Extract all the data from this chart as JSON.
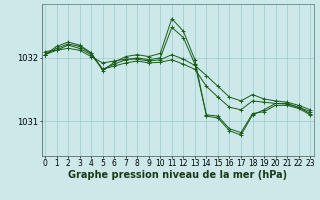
{
  "background_color": "#cce8e8",
  "plot_bg_color": "#cce8e8",
  "grid_color": "#99cccc",
  "line_color": "#1a5c1a",
  "marker_color": "#1a5c1a",
  "xlabel": "Graphe pression niveau de la mer (hPa)",
  "xlabel_fontsize": 7,
  "ylabel_fontsize": 6,
  "tick_fontsize": 5.5,
  "ytick_labels": [
    1031,
    1032
  ],
  "ylim": [
    1030.45,
    1032.85
  ],
  "xlim": [
    -0.3,
    23.3
  ],
  "xticks": [
    0,
    1,
    2,
    3,
    4,
    5,
    6,
    7,
    8,
    9,
    10,
    11,
    12,
    13,
    14,
    15,
    16,
    17,
    18,
    19,
    20,
    21,
    22,
    23
  ],
  "series": [
    {
      "x": [
        0,
        1,
        2,
        3,
        4,
        5,
        6,
        7,
        8,
        9,
        10,
        11,
        12,
        13,
        14,
        15,
        16,
        17,
        18,
        19,
        20,
        21,
        22,
        23
      ],
      "y": [
        1032.05,
        1032.15,
        1032.22,
        1032.18,
        1032.07,
        1031.82,
        1031.87,
        1031.92,
        1031.95,
        1031.92,
        1031.93,
        1031.97,
        1031.9,
        1031.82,
        1031.55,
        1031.38,
        1031.22,
        1031.18,
        1031.32,
        1031.3,
        1031.28,
        1031.27,
        1031.22,
        1031.15
      ]
    },
    {
      "x": [
        0,
        1,
        2,
        3,
        4,
        5,
        6,
        7,
        8,
        9,
        10,
        11,
        12,
        13,
        14,
        15,
        16,
        17,
        18,
        19,
        20,
        21,
        22,
        23
      ],
      "y": [
        1032.05,
        1032.12,
        1032.2,
        1032.15,
        1032.05,
        1031.82,
        1031.9,
        1031.97,
        1032.0,
        1031.97,
        1032.0,
        1032.48,
        1032.32,
        1031.9,
        1031.1,
        1031.08,
        1030.88,
        1030.82,
        1031.12,
        1031.15,
        1031.25,
        1031.25,
        1031.2,
        1031.1
      ]
    },
    {
      "x": [
        0,
        1,
        2,
        3,
        4,
        5,
        6,
        7,
        8,
        9,
        10,
        11,
        12,
        13,
        14,
        15,
        16,
        17,
        18,
        19,
        20,
        21,
        22,
        23
      ],
      "y": [
        1032.05,
        1032.18,
        1032.25,
        1032.2,
        1032.08,
        1031.8,
        1031.93,
        1032.02,
        1032.05,
        1032.02,
        1032.07,
        1032.62,
        1032.42,
        1031.97,
        1031.08,
        1031.05,
        1030.85,
        1030.78,
        1031.1,
        1031.18,
        1031.28,
        1031.28,
        1031.22,
        1031.12
      ]
    },
    {
      "x": [
        0,
        1,
        2,
        3,
        4,
        5,
        6,
        7,
        8,
        9,
        10,
        11,
        12,
        13,
        14,
        15,
        16,
        17,
        18,
        19,
        20,
        21,
        22,
        23
      ],
      "y": [
        1032.1,
        1032.12,
        1032.15,
        1032.12,
        1032.02,
        1031.92,
        1031.95,
        1031.98,
        1031.98,
        1031.95,
        1031.97,
        1032.05,
        1031.98,
        1031.88,
        1031.72,
        1031.55,
        1031.38,
        1031.32,
        1031.42,
        1031.35,
        1031.32,
        1031.3,
        1031.25,
        1031.18
      ]
    }
  ]
}
